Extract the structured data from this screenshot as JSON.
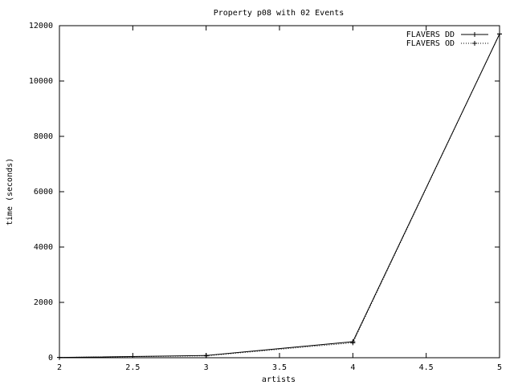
{
  "chart_data": {
    "type": "line",
    "title": "Property p08 with 02 Events",
    "xlabel": "artists",
    "ylabel": "time (seconds)",
    "x": [
      2,
      3,
      4,
      5
    ],
    "series": [
      {
        "name": "FLAVERS DD",
        "color": "#000000",
        "line_style": "solid",
        "values": [
          10,
          80,
          580,
          11700
        ]
      },
      {
        "name": "FLAVERS OD",
        "color": "#000000",
        "line_style": "dotted",
        "values": [
          10,
          70,
          540,
          11700
        ]
      }
    ],
    "xlim": [
      2,
      5
    ],
    "xticks": [
      2,
      2.5,
      3,
      3.5,
      4,
      4.5,
      5
    ],
    "ylim": [
      0,
      12000
    ],
    "yticks": [
      0,
      2000,
      4000,
      6000,
      8000,
      10000,
      12000
    ],
    "grid": false,
    "legend": "upper right"
  }
}
